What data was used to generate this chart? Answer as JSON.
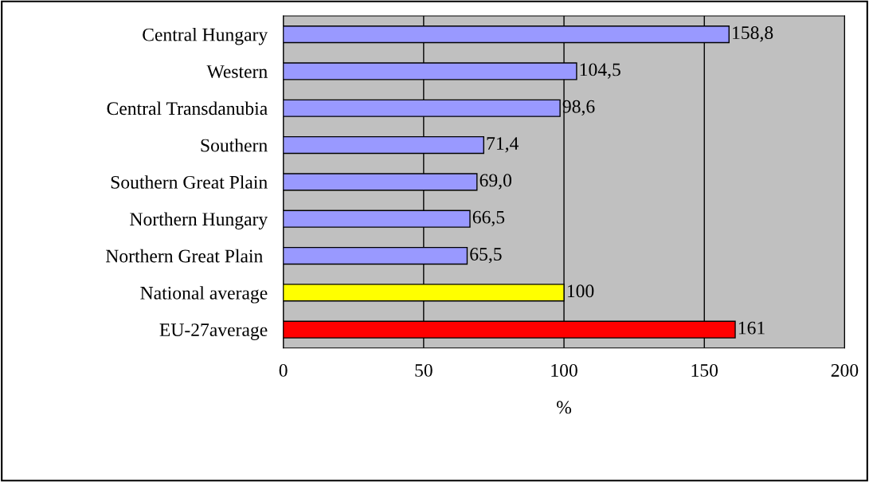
{
  "chart_data": {
    "type": "bar",
    "orientation": "horizontal",
    "categories": [
      "Central Hungary",
      "Western",
      "Central Transdanubia",
      "Southern",
      "Southern Great Plain",
      "Northern Hungary",
      "Northern Great Plain ",
      "National average",
      "EU-27average"
    ],
    "values": [
      158.8,
      104.5,
      98.6,
      71.4,
      69.0,
      66.5,
      65.5,
      100,
      161
    ],
    "value_labels": [
      "158,8",
      "104,5",
      "98,6",
      "71,4",
      "69,0",
      "66,5",
      "65,5",
      "100",
      "161"
    ],
    "colors": [
      "#9999ff",
      "#9999ff",
      "#9999ff",
      "#9999ff",
      "#9999ff",
      "#9999ff",
      "#9999ff",
      "#ffff00",
      "#ff0000"
    ],
    "xlim": [
      0,
      200
    ],
    "xticks": [
      0,
      50,
      100,
      150,
      200
    ],
    "xlabel": "%",
    "grid": "x",
    "legend": false
  }
}
